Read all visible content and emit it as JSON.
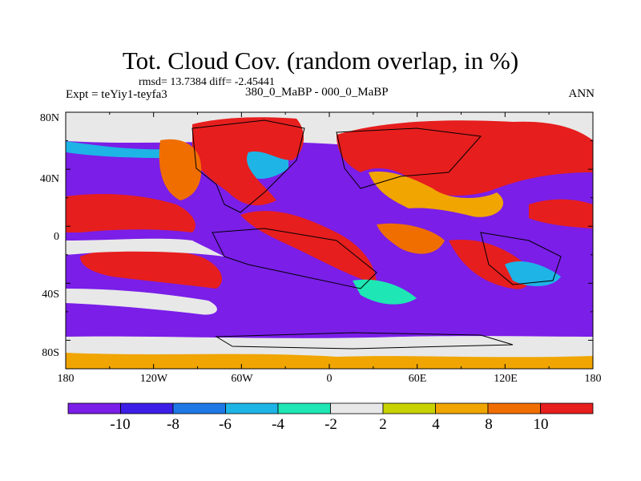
{
  "header": {
    "title": "Tot. Cloud Cov. (random overlap, in %)",
    "stats": "rmsd= 13.7384  diff= -2.45441",
    "experiment": "Expt = teYiy1-teyfa3",
    "period": "380_0_MaBP - 000_0_MaBP",
    "season": "ANN"
  },
  "axes": {
    "lat_ticks": [
      "80N",
      "40N",
      "0",
      "40S",
      "80S"
    ],
    "lon_ticks": [
      "180",
      "120W",
      "60W",
      "0",
      "60E",
      "120E",
      "180"
    ]
  },
  "colorbar": {
    "colors": [
      "#7a1ee8",
      "#3c1ee6",
      "#1e78e6",
      "#1eb4e6",
      "#1ee6b4",
      "#e8e8e8",
      "#c8d200",
      "#f0a500",
      "#f06e00",
      "#e61e1e"
    ],
    "labels": [
      "-10",
      "-8",
      "-6",
      "-4",
      "-2",
      "2",
      "4",
      "8",
      "10"
    ]
  }
}
